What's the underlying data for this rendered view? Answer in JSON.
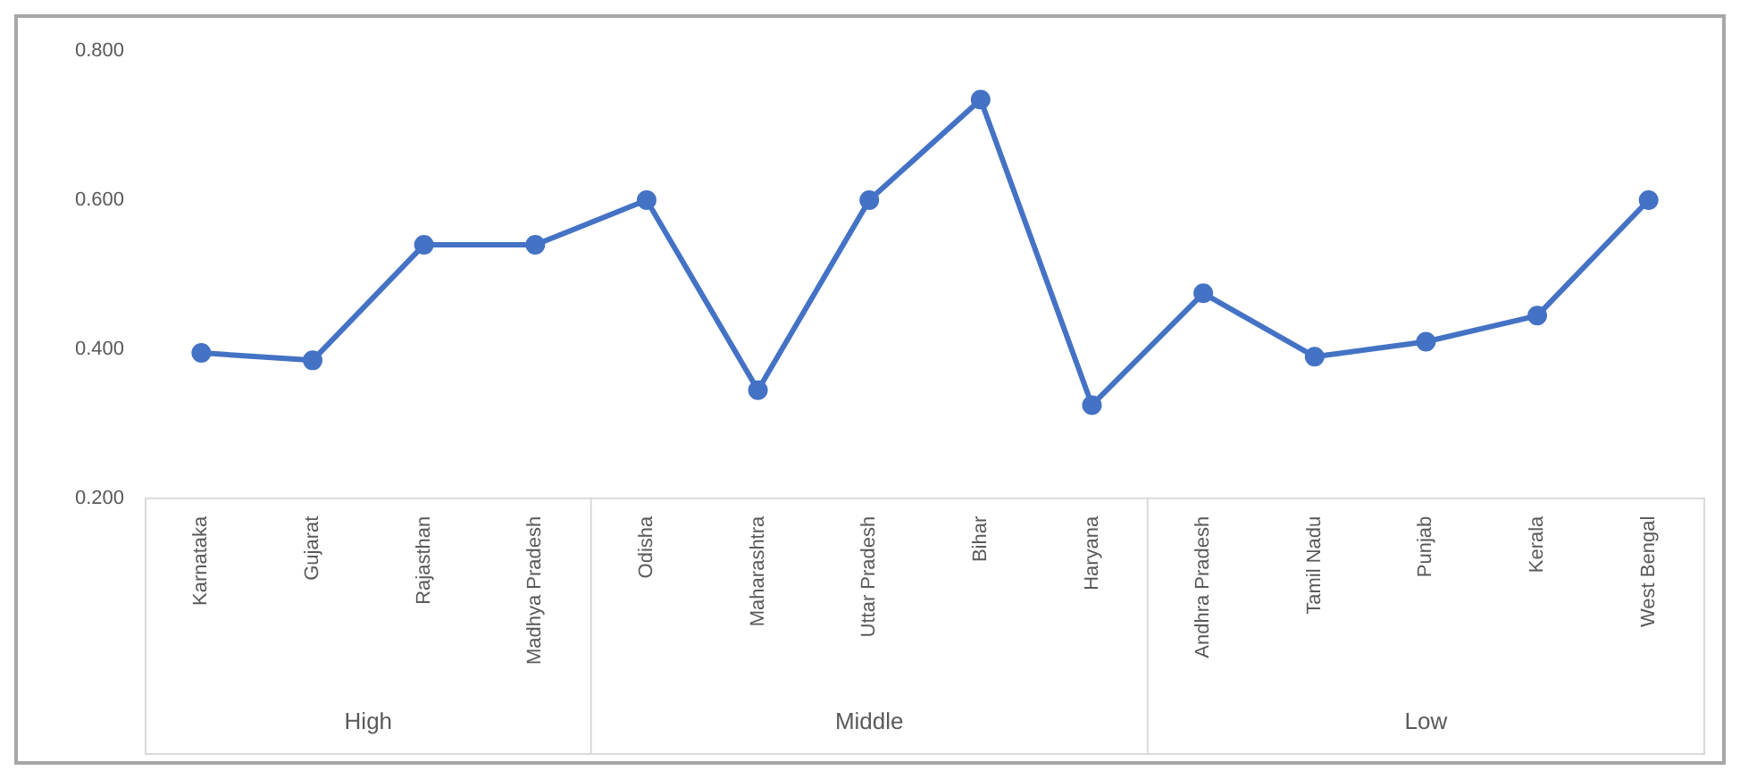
{
  "chart_data": {
    "type": "line",
    "categories": [
      "Karnataka",
      "Gujarat",
      "Rajasthan",
      "Madhya Pradesh",
      "Odisha",
      "Maharashtra",
      "Uttar Pradesh",
      "Bihar",
      "Haryana",
      "Andhra Pradesh",
      "Tamil Nadu",
      "Punjab",
      "Kerala",
      "West Bengal"
    ],
    "series": [
      {
        "color": "#4472c4",
        "values": [
          0.395,
          0.385,
          0.54,
          0.54,
          0.6,
          0.345,
          0.6,
          0.735,
          0.325,
          0.475,
          0.39,
          0.41,
          0.445,
          0.6
        ]
      }
    ],
    "ylim": [
      0.2,
      0.8
    ],
    "yticks": [
      {
        "value": 0.2,
        "label": "0.200"
      },
      {
        "value": 0.4,
        "label": "0.400"
      },
      {
        "value": 0.6,
        "label": "0.600"
      },
      {
        "value": 0.8,
        "label": "0.800"
      }
    ],
    "annotations": [
      "High",
      "Middle",
      "Low"
    ],
    "grid": false,
    "legend": false,
    "marker": "circle",
    "line_style": "solid"
  }
}
